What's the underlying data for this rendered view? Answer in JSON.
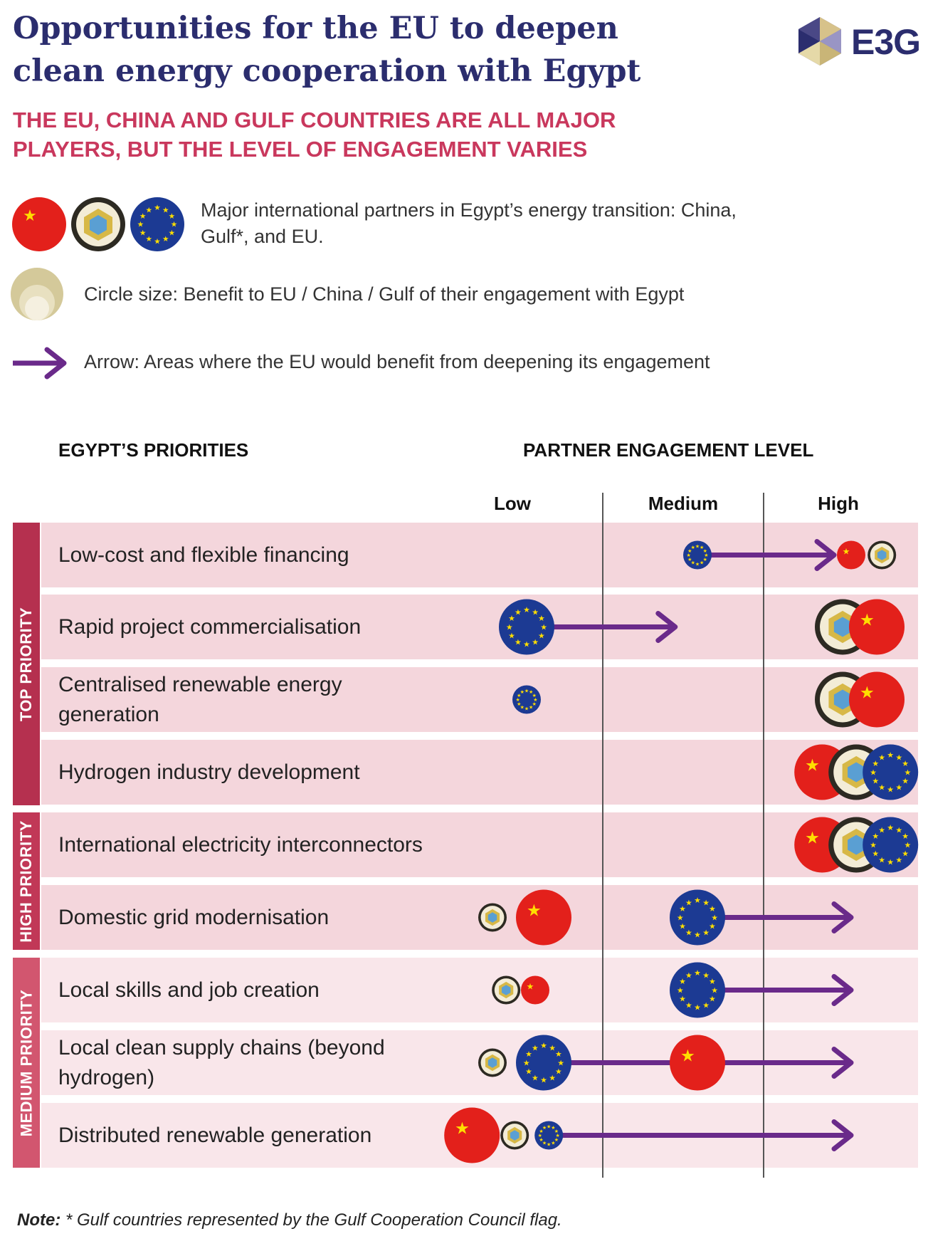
{
  "title": "Opportunities for the EU to deepen clean energy cooperation with Egypt",
  "logo": "E3G",
  "subtitle": "THE EU, CHINA AND GULF COUNTRIES ARE ALL MAJOR PLAYERS, BUT THE LEVEL OF ENGAGEMENT VARIES",
  "legend": {
    "partners": "Major international partners in Egypt’s energy transition: China, Gulf*, and EU.",
    "circle_size": "Circle size: Benefit to EU / China / Gulf of their engagement with Egypt",
    "arrow": "Arrow: Areas where the EU would benefit from deepening its engagement"
  },
  "headers": {
    "priorities": "EGYPT’S PRIORITIES",
    "engagement": "PARTNER ENGAGEMENT LEVEL"
  },
  "levels": [
    "Low",
    "Medium",
    "High"
  ],
  "priority_groups": [
    {
      "label": "TOP PRIORITY",
      "color": "#b5304f",
      "rows": 4
    },
    {
      "label": "HIGH PRIORITY",
      "color": "#c13857",
      "rows": 2
    },
    {
      "label": "MEDIUM PRIORITY",
      "color": "#d2566f",
      "rows": 3
    }
  ],
  "colors": {
    "china": "#e3201b",
    "eu": "#1c3a93",
    "gulf": "#3a3a2a",
    "arrow": "#6a2a8a",
    "top_band": "#f4d6dc",
    "medium_band": "#f9e6ea",
    "title": "#2b2d6e",
    "subtitle": "#c9385d"
  },
  "rows": [
    {
      "label": "Low-cost and flexible financing",
      "partners": [
        {
          "p": "eu",
          "x": 1.5,
          "size": "s"
        },
        {
          "p": "china",
          "x": 2.4,
          "size": "s"
        },
        {
          "p": "gulf",
          "x": 2.58,
          "size": "s"
        }
      ],
      "arrow": {
        "from": 1.5,
        "to": 2.3
      }
    },
    {
      "label": "Rapid project commercialisation",
      "partners": [
        {
          "p": "eu",
          "x": 0.5,
          "size": "l"
        },
        {
          "p": "gulf",
          "x": 2.35,
          "size": "l"
        },
        {
          "p": "china",
          "x": 2.55,
          "size": "l"
        }
      ],
      "arrow": {
        "from": 0.5,
        "to": 1.37
      }
    },
    {
      "label": "Centralised renewable energy generation",
      "partners": [
        {
          "p": "eu",
          "x": 0.5,
          "size": "s"
        },
        {
          "p": "gulf",
          "x": 2.35,
          "size": "l"
        },
        {
          "p": "china",
          "x": 2.55,
          "size": "l"
        }
      ],
      "arrow": null
    },
    {
      "label": "Hydrogen industry development",
      "partners": [
        {
          "p": "china",
          "x": 2.23,
          "size": "l"
        },
        {
          "p": "gulf",
          "x": 2.43,
          "size": "l"
        },
        {
          "p": "eu",
          "x": 2.63,
          "size": "l"
        }
      ],
      "arrow": null
    },
    {
      "label": "International electricity interconnectors",
      "partners": [
        {
          "p": "china",
          "x": 2.23,
          "size": "l"
        },
        {
          "p": "gulf",
          "x": 2.43,
          "size": "l"
        },
        {
          "p": "eu",
          "x": 2.63,
          "size": "l"
        }
      ],
      "arrow": null
    },
    {
      "label": "Domestic grid modernisation",
      "partners": [
        {
          "p": "gulf",
          "x": 0.3,
          "size": "s"
        },
        {
          "p": "china",
          "x": 0.6,
          "size": "l"
        },
        {
          "p": "eu",
          "x": 1.5,
          "size": "l"
        }
      ],
      "arrow": {
        "from": 1.5,
        "to": 2.4
      }
    },
    {
      "label": "Local skills and job creation",
      "partners": [
        {
          "p": "gulf",
          "x": 0.38,
          "size": "s"
        },
        {
          "p": "china",
          "x": 0.55,
          "size": "s"
        },
        {
          "p": "eu",
          "x": 1.5,
          "size": "l"
        }
      ],
      "arrow": {
        "from": 1.5,
        "to": 2.4
      }
    },
    {
      "label": "Local clean supply chains (beyond hydrogen)",
      "partners": [
        {
          "p": "gulf",
          "x": 0.3,
          "size": "s"
        },
        {
          "p": "eu",
          "x": 0.6,
          "size": "l"
        },
        {
          "p": "china",
          "x": 1.5,
          "size": "l"
        }
      ],
      "arrow": {
        "from": 0.6,
        "to": 2.4
      }
    },
    {
      "label": "Distributed renewable generation",
      "partners": [
        {
          "p": "china",
          "x": 0.18,
          "size": "l"
        },
        {
          "p": "gulf",
          "x": 0.43,
          "size": "s"
        },
        {
          "p": "eu",
          "x": 0.63,
          "size": "s"
        }
      ],
      "arrow": {
        "from": 0.63,
        "to": 2.4
      }
    }
  ],
  "note": {
    "label": "Note:",
    "text": "* Gulf countries represented by the Gulf Cooperation Council flag."
  }
}
